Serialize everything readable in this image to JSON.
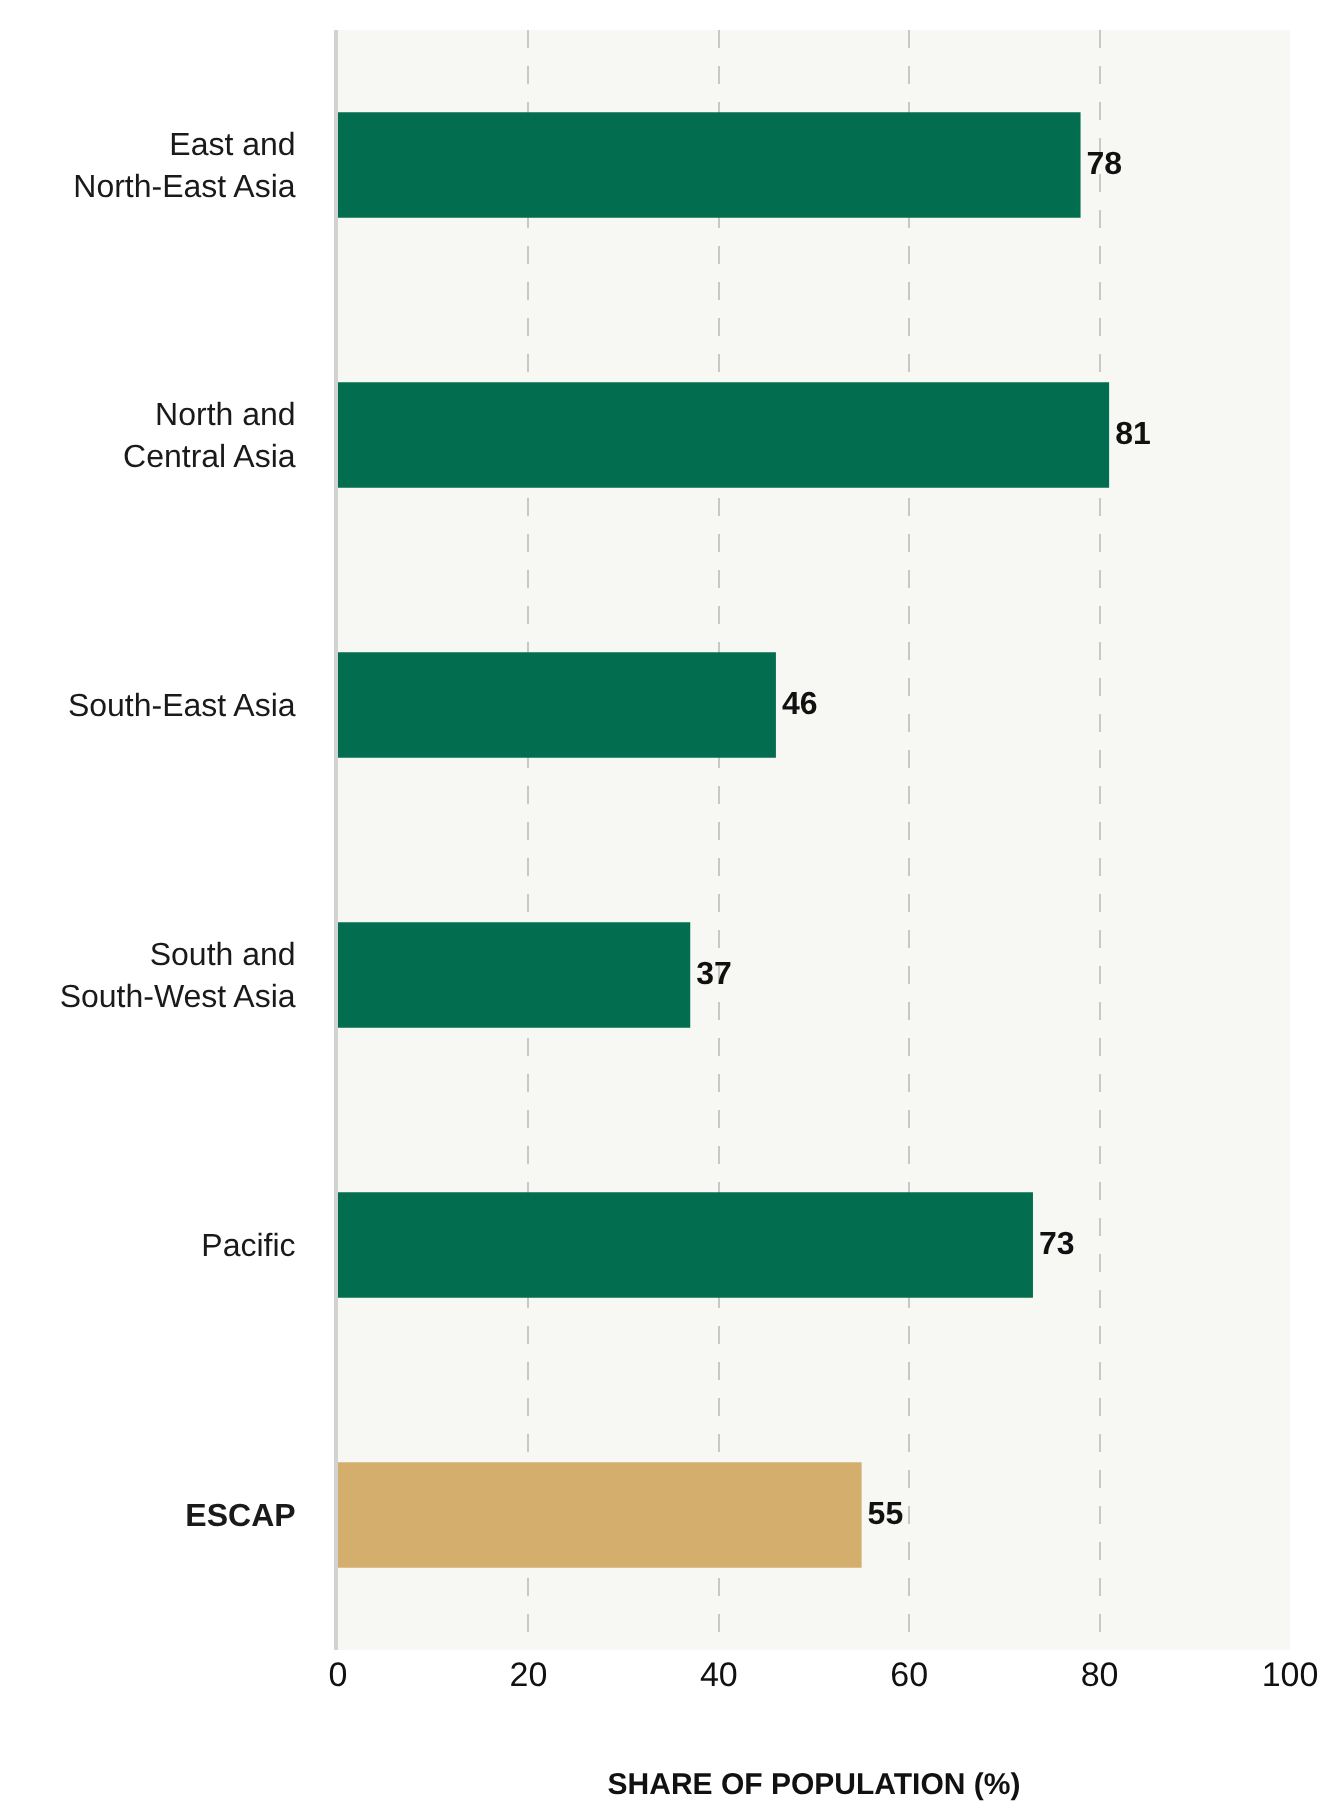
{
  "chart_data": {
    "type": "bar",
    "orientation": "horizontal",
    "categories": [
      "East and North-East Asia",
      "North and Central Asia",
      "South-East Asia",
      "South and South-West Asia",
      "Pacific",
      "ESCAP"
    ],
    "values": [
      78,
      81,
      46,
      37,
      73,
      55
    ],
    "colors": [
      "#036e4f",
      "#036e4f",
      "#036e4f",
      "#036e4f",
      "#036e4f",
      "#d3ae6d"
    ],
    "xlabel": "SHARE OF POPULATION (%)",
    "xlim": [
      0,
      100
    ],
    "xticks": [
      0,
      20,
      40,
      60,
      80,
      100
    ],
    "grid": "x",
    "data_labels": true
  }
}
